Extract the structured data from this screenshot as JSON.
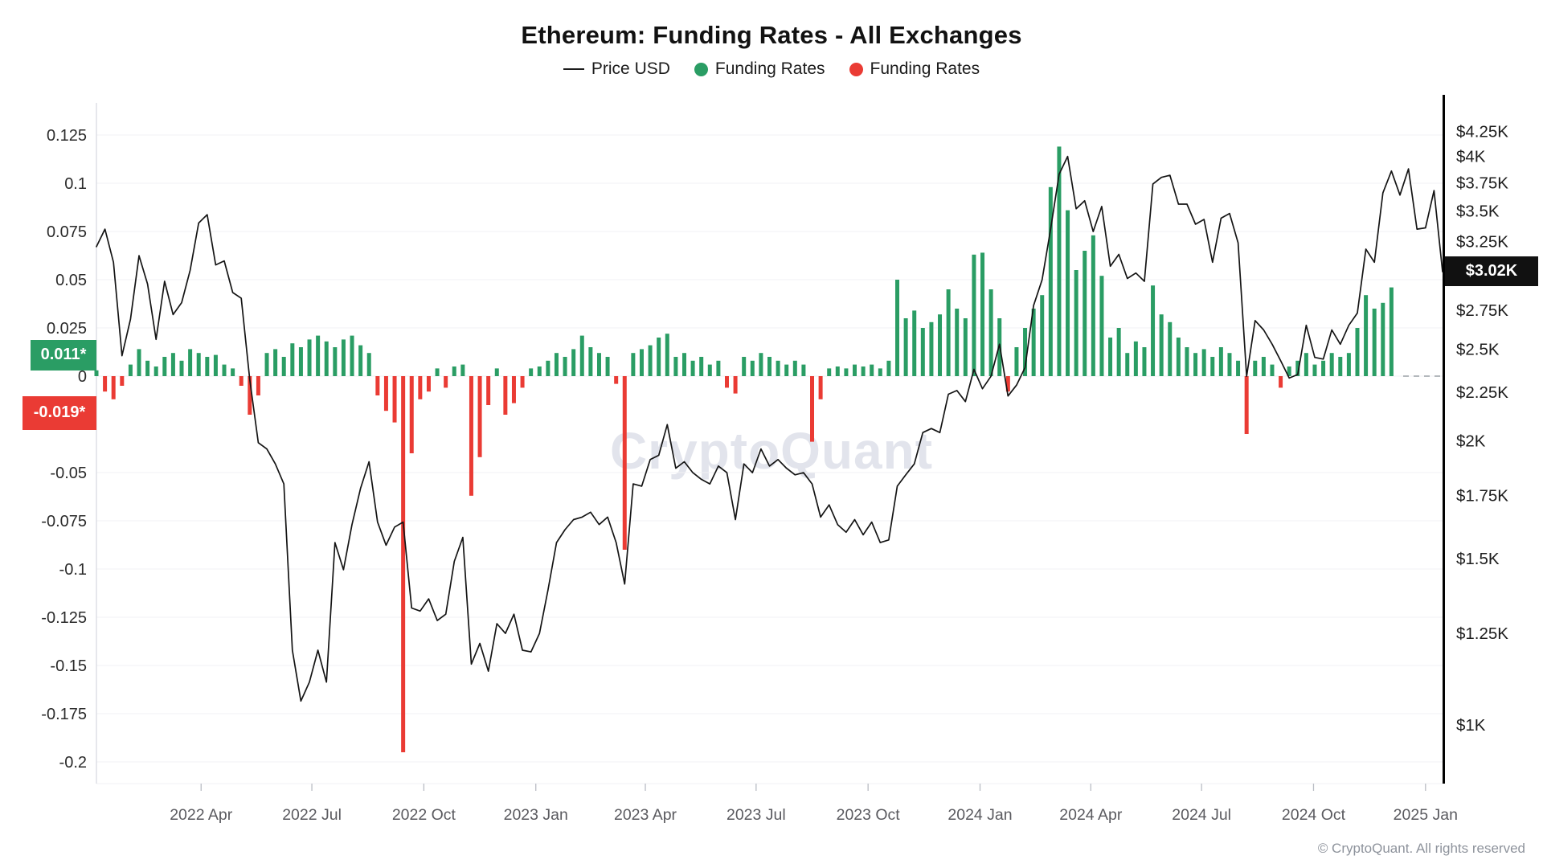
{
  "title": "Ethereum: Funding Rates - All Exchanges",
  "legend": {
    "price_label": "Price USD",
    "funding_positive_label": "Funding Rates",
    "funding_negative_label": "Funding Rates"
  },
  "badges": {
    "funding_positive": {
      "label": "0.011*",
      "value": 0.011,
      "color": "#2a9d64"
    },
    "funding_negative": {
      "label": "-0.019*",
      "value": -0.019,
      "color": "#ea3b34"
    },
    "price_last": {
      "label": "$3.02K",
      "value": 3020,
      "color": "#111111"
    }
  },
  "watermark": "CryptoQuant",
  "copyright": "© CryptoQuant. All rights reserved",
  "colors": {
    "price_line": "#141414",
    "funding_positive": "#2a9d64",
    "funding_negative": "#ea3b34",
    "grid": "#f1f2f5",
    "axis_left_line": "#dcdde3",
    "axis_right_line": "#000000",
    "tick_text_left": "#2b2b2b",
    "tick_text_right": "#1c1c1c",
    "tick_text_bottom": "#5a5a5f",
    "zero_dash": "#9aa0a6"
  },
  "axes": {
    "funding_ticks": [
      {
        "label": "0.125",
        "value": 0.125
      },
      {
        "label": "0.1",
        "value": 0.1
      },
      {
        "label": "0.075",
        "value": 0.075
      },
      {
        "label": "0.05",
        "value": 0.05
      },
      {
        "label": "0.025",
        "value": 0.025
      },
      {
        "label": "0",
        "value": 0
      },
      {
        "label": "-0.05",
        "value": -0.05
      },
      {
        "label": "-0.075",
        "value": -0.075
      },
      {
        "label": "-0.1",
        "value": -0.1
      },
      {
        "label": "-0.125",
        "value": -0.125
      },
      {
        "label": "-0.15",
        "value": -0.15
      },
      {
        "label": "-0.175",
        "value": -0.175
      },
      {
        "label": "-0.2",
        "value": -0.2
      }
    ],
    "price_ticks": [
      {
        "label": "$4.25K",
        "value": 4250
      },
      {
        "label": "$4K",
        "value": 4000
      },
      {
        "label": "$3.75K",
        "value": 3750
      },
      {
        "label": "$3.5K",
        "value": 3500
      },
      {
        "label": "$3.25K",
        "value": 3250
      },
      {
        "label": "$2.75K",
        "value": 2750
      },
      {
        "label": "$2.5K",
        "value": 2500
      },
      {
        "label": "$2.25K",
        "value": 2250
      },
      {
        "label": "$2K",
        "value": 2000
      },
      {
        "label": "$1.75K",
        "value": 1750
      },
      {
        "label": "$1.5K",
        "value": 1500
      },
      {
        "label": "$1.25K",
        "value": 1250
      },
      {
        "label": "$1K",
        "value": 1000
      }
    ],
    "x_ticks": [
      {
        "label": "2022 Apr",
        "date": "2022-04-01"
      },
      {
        "label": "2022 Jul",
        "date": "2022-07-01"
      },
      {
        "label": "2022 Oct",
        "date": "2022-10-01"
      },
      {
        "label": "2023 Jan",
        "date": "2023-01-01"
      },
      {
        "label": "2023 Apr",
        "date": "2023-04-01"
      },
      {
        "label": "2023 Jul",
        "date": "2023-07-01"
      },
      {
        "label": "2023 Oct",
        "date": "2023-10-01"
      },
      {
        "label": "2024 Jan",
        "date": "2024-01-01"
      },
      {
        "label": "2024 Apr",
        "date": "2024-04-01"
      },
      {
        "label": "2024 Jul",
        "date": "2024-07-01"
      },
      {
        "label": "2024 Oct",
        "date": "2024-10-01"
      },
      {
        "label": "2025 Jan",
        "date": "2025-01-01"
      }
    ]
  },
  "chart_data": {
    "type": "line+bar",
    "title": "Ethereum: Funding Rates - All Exchanges",
    "x": {
      "start_date": "2022-01-05",
      "step_days": 7,
      "count": 159
    },
    "left_axis": {
      "name": "Funding Rates",
      "range": [
        -0.2125,
        0.1417
      ],
      "scale": "linear"
    },
    "right_axis": {
      "name": "Price USD",
      "range": [
        1000,
        4250
      ],
      "scale": "log",
      "unit": "USD"
    },
    "grid": true,
    "legend_position": "top",
    "series": [
      {
        "name": "Price USD",
        "type": "line",
        "axis": "right",
        "unit": "USD",
        "values": [
          3210,
          3350,
          3090,
          2460,
          2690,
          3140,
          2930,
          2560,
          2950,
          2720,
          2800,
          3030,
          3400,
          3470,
          3070,
          3100,
          2870,
          2830,
          2320,
          1990,
          1960,
          1890,
          1800,
          1200,
          1060,
          1110,
          1200,
          1110,
          1560,
          1460,
          1630,
          1780,
          1900,
          1640,
          1550,
          1620,
          1640,
          1330,
          1320,
          1360,
          1290,
          1310,
          1490,
          1580,
          1160,
          1220,
          1140,
          1280,
          1250,
          1310,
          1200,
          1195,
          1250,
          1390,
          1560,
          1610,
          1650,
          1660,
          1680,
          1630,
          1660,
          1560,
          1410,
          1800,
          1790,
          1910,
          1930,
          2080,
          1870,
          1900,
          1850,
          1820,
          1800,
          1880,
          1850,
          1650,
          1890,
          1850,
          1960,
          1880,
          1910,
          1870,
          1840,
          1850,
          1800,
          1660,
          1710,
          1630,
          1600,
          1650,
          1590,
          1640,
          1560,
          1570,
          1790,
          1840,
          1890,
          2040,
          2060,
          2040,
          2240,
          2260,
          2200,
          2380,
          2270,
          2340,
          2530,
          2230,
          2290,
          2390,
          2780,
          2960,
          3350,
          3830,
          4000,
          3520,
          3590,
          3330,
          3540,
          3060,
          3150,
          2970,
          3010,
          2950,
          3740,
          3800,
          3820,
          3560,
          3560,
          3390,
          3430,
          3090,
          3440,
          3480,
          3240,
          2340,
          2680,
          2620,
          2530,
          2430,
          2330,
          2350,
          2650,
          2450,
          2440,
          2620,
          2530,
          2650,
          2730,
          3190,
          3090,
          3660,
          3860,
          3640,
          3880,
          3350,
          3360,
          3680,
          3020
        ]
      },
      {
        "name": "Funding Rates",
        "type": "bar",
        "axis": "left",
        "values": [
          0.003,
          -0.008,
          -0.012,
          -0.005,
          0.006,
          0.014,
          0.008,
          0.005,
          0.01,
          0.012,
          0.008,
          0.014,
          0.012,
          0.01,
          0.011,
          0.006,
          0.004,
          -0.005,
          -0.02,
          -0.01,
          0.012,
          0.014,
          0.01,
          0.017,
          0.015,
          0.019,
          0.021,
          0.018,
          0.015,
          0.019,
          0.021,
          0.016,
          0.012,
          -0.01,
          -0.018,
          -0.024,
          -0.195,
          -0.04,
          -0.012,
          -0.008,
          0.004,
          -0.006,
          0.005,
          0.006,
          -0.062,
          -0.042,
          -0.015,
          0.004,
          -0.02,
          -0.014,
          -0.006,
          0.004,
          0.005,
          0.008,
          0.012,
          0.01,
          0.014,
          0.021,
          0.015,
          0.012,
          0.01,
          -0.004,
          -0.09,
          0.012,
          0.014,
          0.016,
          0.02,
          0.022,
          0.01,
          0.012,
          0.008,
          0.01,
          0.006,
          0.008,
          -0.006,
          -0.009,
          0.01,
          0.008,
          0.012,
          0.01,
          0.008,
          0.006,
          0.008,
          0.006,
          -0.034,
          -0.012,
          0.004,
          0.005,
          0.004,
          0.006,
          0.005,
          0.006,
          0.004,
          0.008,
          0.05,
          0.03,
          0.034,
          0.025,
          0.028,
          0.032,
          0.045,
          0.035,
          0.03,
          0.063,
          0.064,
          0.045,
          0.03,
          -0.008,
          0.015,
          0.025,
          0.035,
          0.042,
          0.098,
          0.119,
          0.086,
          0.055,
          0.065,
          0.073,
          0.052,
          0.02,
          0.025,
          0.012,
          0.018,
          0.015,
          0.047,
          0.032,
          0.028,
          0.02,
          0.015,
          0.012,
          0.014,
          0.01,
          0.015,
          0.012,
          0.008,
          -0.03,
          0.008,
          0.01,
          0.006,
          -0.006,
          0.005,
          0.008,
          0.012,
          0.006,
          0.008,
          0.012,
          0.01,
          0.012,
          0.025,
          0.042,
          0.035,
          0.038,
          0.046,
          null,
          null,
          null,
          null,
          null,
          null,
          null
        ]
      }
    ]
  }
}
